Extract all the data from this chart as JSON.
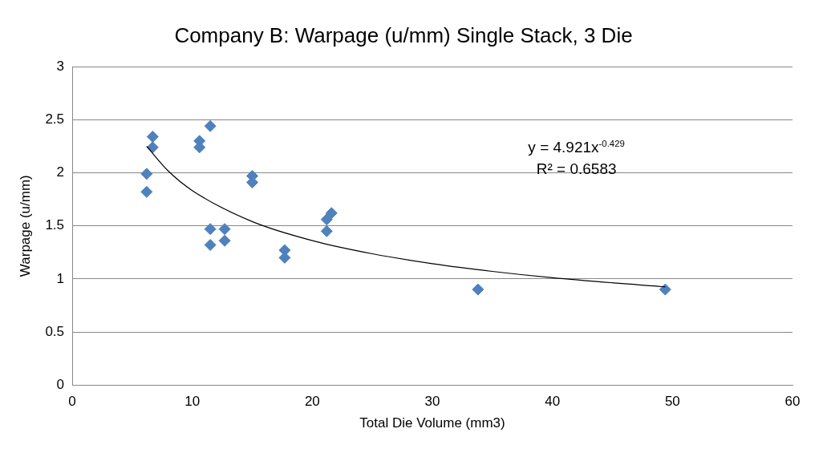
{
  "chart_data": {
    "type": "scatter",
    "title": "Company B: Warpage (u/mm) Single Stack, 3 Die",
    "xlabel": "Total Die Volume (mm3)",
    "ylabel": "Warpage (u/mm)",
    "xlim": [
      0,
      60
    ],
    "xticks": [
      0,
      10,
      20,
      30,
      40,
      50,
      60
    ],
    "ylim": [
      0,
      3
    ],
    "yticks": [
      0,
      0.5,
      1,
      1.5,
      2,
      2.5,
      3
    ],
    "grid": "y",
    "legend": false,
    "marker": "diamond",
    "series": [
      {
        "color": "#4f81bd",
        "x": [
          6.7,
          6.7,
          6.2,
          6.2,
          10.6,
          10.6,
          11.5,
          15.0,
          15.0,
          11.5,
          11.5,
          12.7,
          12.7,
          17.7,
          17.7,
          21.6,
          21.2,
          21.2,
          33.8,
          49.4
        ],
        "values": [
          2.34,
          2.24,
          1.99,
          1.82,
          2.3,
          2.24,
          2.44,
          1.97,
          1.91,
          1.47,
          1.32,
          1.47,
          1.36,
          1.27,
          1.2,
          1.62,
          1.56,
          1.45,
          0.9,
          0.9
        ]
      },
      {
        "type": "line",
        "color": "#000000",
        "marker": "none",
        "line_style": "solid",
        "x": [
          6.2,
          8,
          10,
          15,
          20,
          25,
          30,
          35,
          40,
          49.4
        ],
        "values": [
          2.25,
          2.017,
          1.833,
          1.54,
          1.361,
          1.237,
          1.144,
          1.071,
          1.011,
          0.924
        ]
      }
    ],
    "annotations": [
      "y = 4.921x$^{-0.429}$",
      "R² = 0.6583"
    ]
  }
}
